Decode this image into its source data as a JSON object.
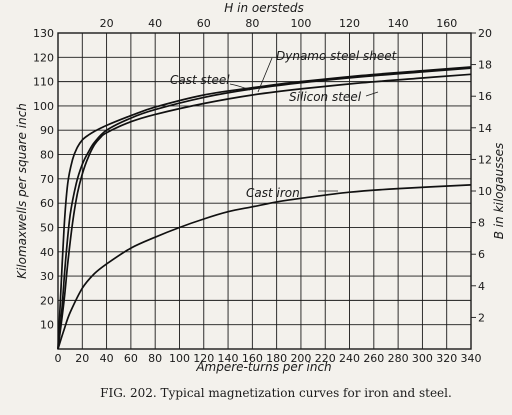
{
  "chart_data": {
    "type": "line",
    "caption": "FIG. 202.   Typical magnetization curves for iron and steel.",
    "xlabel": "Ampere-turns per inch",
    "ylabel": "Kilomaxwells per square inch",
    "x2label": "H in oersteds",
    "y2label": "B in kilogausses",
    "xlim": [
      0,
      340
    ],
    "ylim": [
      0,
      130
    ],
    "x2lim": [
      0,
      170
    ],
    "y2lim": [
      0,
      20
    ],
    "x_ticks": [
      0,
      20,
      40,
      60,
      80,
      100,
      120,
      140,
      160,
      180,
      200,
      220,
      240,
      260,
      280,
      300,
      320,
      340
    ],
    "y_ticks": [
      10,
      20,
      30,
      40,
      50,
      60,
      70,
      80,
      90,
      100,
      110,
      120,
      130
    ],
    "x2_ticks": [
      20,
      40,
      60,
      80,
      100,
      120,
      140,
      160
    ],
    "y2_ticks": [
      2,
      4,
      6,
      8,
      10,
      12,
      14,
      16,
      18,
      20
    ],
    "grid": true,
    "series": [
      {
        "name": "Dynamo steel sheet",
        "x": [
          0,
          2,
          5,
          8,
          12,
          16,
          20,
          25,
          30,
          40,
          60,
          80,
          120,
          160,
          200,
          250,
          300,
          340
        ],
        "y": [
          0,
          20,
          50,
          68,
          78,
          83,
          86,
          88,
          89.5,
          92,
          96,
          99.5,
          104.5,
          107.5,
          110,
          112.5,
          114.5,
          116
        ]
      },
      {
        "name": "Cast steel",
        "x": [
          0,
          3,
          6,
          10,
          15,
          20,
          25,
          30,
          40,
          60,
          80,
          120,
          160,
          200,
          250,
          300,
          340
        ],
        "y": [
          0,
          15,
          35,
          55,
          68,
          76,
          81,
          85,
          90,
          95,
          98.5,
          103.5,
          107,
          109.5,
          112,
          114,
          115.5
        ]
      },
      {
        "name": "Silicon steel",
        "x": [
          0,
          5,
          8,
          12,
          16,
          20,
          25,
          30,
          35,
          40,
          60,
          80,
          120,
          160,
          200,
          250,
          300,
          340
        ],
        "y": [
          0,
          20,
          35,
          52,
          64,
          72,
          79,
          84,
          87,
          89,
          93.5,
          96.5,
          101,
          104.5,
          107,
          109.5,
          111.5,
          113
        ]
      },
      {
        "name": "Cast iron",
        "x": [
          0,
          5,
          10,
          20,
          30,
          40,
          60,
          80,
          100,
          120,
          140,
          160,
          180,
          200,
          240,
          280,
          340
        ],
        "y": [
          0,
          8,
          15,
          25,
          31,
          35,
          41.5,
          46,
          50,
          53.5,
          56.5,
          58.5,
          60.5,
          62,
          64.5,
          66,
          67.5
        ]
      }
    ]
  }
}
